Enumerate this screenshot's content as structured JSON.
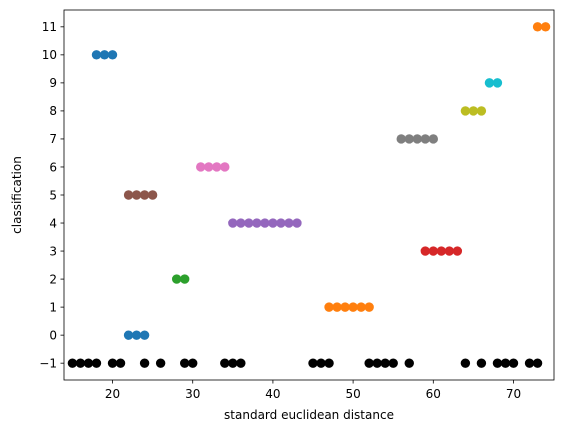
{
  "chart_data": {
    "type": "scatter",
    "title": "",
    "xlabel": "standard euclidean distance",
    "ylabel": "classification",
    "xlim": [
      13.95,
      75.05
    ],
    "ylim": [
      -1.6,
      11.6
    ],
    "xticks": [
      20,
      30,
      40,
      50,
      60,
      70
    ],
    "xtick_labels": [
      "20",
      "30",
      "40",
      "50",
      "60",
      "70"
    ],
    "yticks": [
      -1,
      0,
      1,
      2,
      3,
      4,
      5,
      6,
      7,
      8,
      9,
      10,
      11
    ],
    "ytick_labels": [
      "−1",
      "0",
      "1",
      "2",
      "3",
      "4",
      "5",
      "6",
      "7",
      "8",
      "9",
      "10",
      "11"
    ],
    "grid": false,
    "legend": "none",
    "series": [
      {
        "color": "#000000",
        "y": -1,
        "x": [
          15,
          16,
          17,
          18,
          20,
          21,
          24,
          26,
          29,
          30,
          34,
          35,
          36,
          45,
          46,
          47,
          52,
          53,
          54,
          55,
          57,
          64,
          66,
          68,
          69,
          70,
          72,
          73
        ]
      },
      {
        "color": "#1f77b4",
        "y": 0,
        "x": [
          22,
          23,
          24
        ]
      },
      {
        "color": "#ff7f0e",
        "y": 1,
        "x": [
          47,
          48,
          49,
          50,
          51,
          52
        ]
      },
      {
        "color": "#2ca02c",
        "y": 2,
        "x": [
          28,
          29
        ]
      },
      {
        "color": "#d62728",
        "y": 3,
        "x": [
          59,
          60,
          61,
          62,
          63
        ]
      },
      {
        "color": "#9467bd",
        "y": 4,
        "x": [
          35,
          36,
          37,
          38,
          39,
          40,
          41,
          42,
          43
        ]
      },
      {
        "color": "#8c564b",
        "y": 5,
        "x": [
          22,
          23,
          24,
          25
        ]
      },
      {
        "color": "#e377c2",
        "y": 6,
        "x": [
          31,
          32,
          33,
          34
        ]
      },
      {
        "color": "#7f7f7f",
        "y": 7,
        "x": [
          56,
          57,
          58,
          59,
          60
        ]
      },
      {
        "color": "#bcbd22",
        "y": 8,
        "x": [
          64,
          65,
          66
        ]
      },
      {
        "color": "#17becf",
        "y": 9,
        "x": [
          67,
          68
        ]
      },
      {
        "color": "#1f77b4",
        "y": 10,
        "x": [
          18,
          19,
          20
        ]
      },
      {
        "color": "#ff7f0e",
        "y": 11,
        "x": [
          73,
          74
        ]
      }
    ]
  }
}
